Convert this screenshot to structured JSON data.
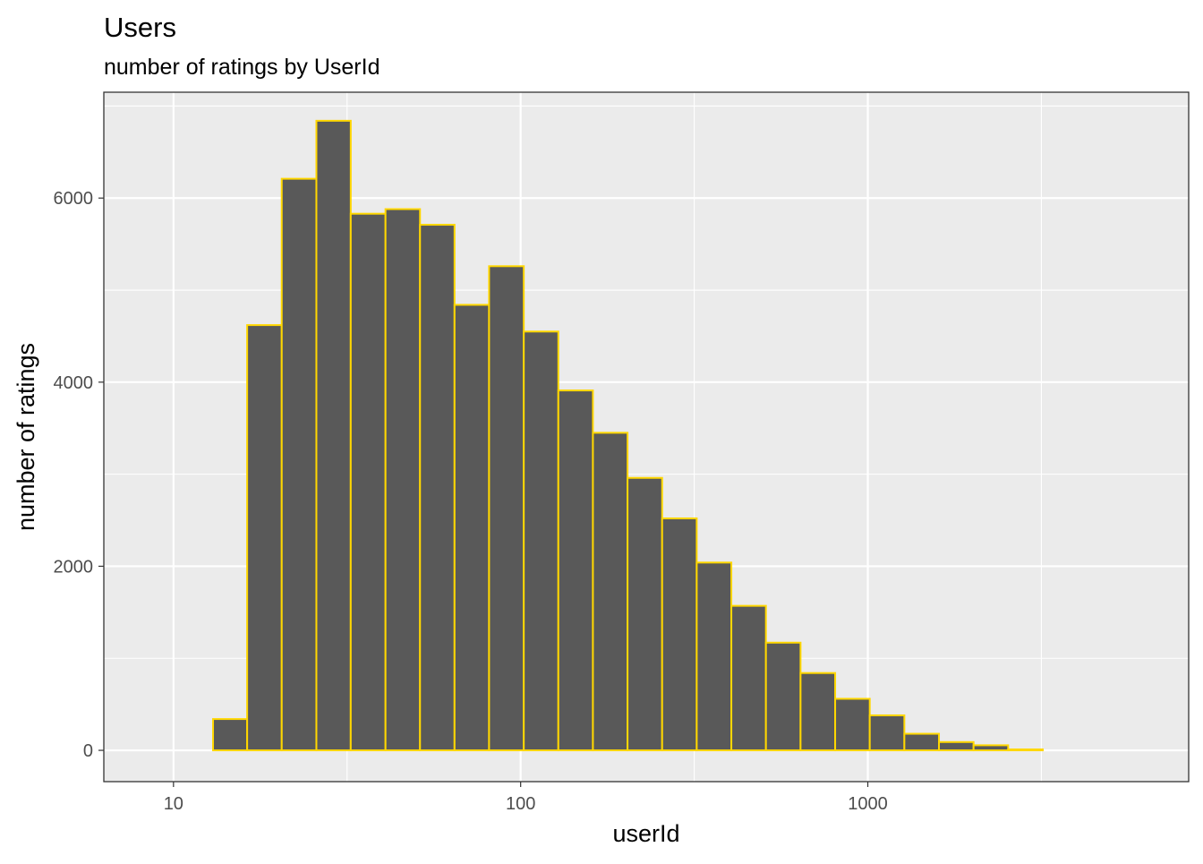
{
  "chart_data": {
    "type": "bar",
    "title": "Users",
    "subtitle": "number of ratings by UserId",
    "xlabel": "userId",
    "ylabel": "number of ratings",
    "x_scale": "log10",
    "xlim": [
      6.3,
      8400
    ],
    "ylim": [
      -340,
      7150
    ],
    "x_ticks": [
      {
        "value": 10,
        "label": "10"
      },
      {
        "value": 100,
        "label": "100"
      },
      {
        "value": 1000,
        "label": "1000"
      }
    ],
    "y_ticks": [
      {
        "value": 0,
        "label": "0"
      },
      {
        "value": 2000,
        "label": "2000"
      },
      {
        "value": 4000,
        "label": "4000"
      },
      {
        "value": 6000,
        "label": "6000"
      }
    ],
    "grid": true,
    "panel_border": true,
    "bins": [
      {
        "x0": 8.2,
        "x1": 10.3,
        "count": 0
      },
      {
        "x0": 10.3,
        "x1": 13.0,
        "count": 0
      },
      {
        "x0": 13.0,
        "x1": 16.3,
        "count": 340
      },
      {
        "x0": 16.3,
        "x1": 20.5,
        "count": 4620
      },
      {
        "x0": 20.5,
        "x1": 25.8,
        "count": 6210
      },
      {
        "x0": 25.8,
        "x1": 32.4,
        "count": 6840
      },
      {
        "x0": 32.4,
        "x1": 40.8,
        "count": 5830
      },
      {
        "x0": 40.8,
        "x1": 51.3,
        "count": 5880
      },
      {
        "x0": 51.3,
        "x1": 64.5,
        "count": 5710
      },
      {
        "x0": 64.5,
        "x1": 81.1,
        "count": 4840
      },
      {
        "x0": 81.1,
        "x1": 102.1,
        "count": 5260
      },
      {
        "x0": 102.1,
        "x1": 128.4,
        "count": 4550
      },
      {
        "x0": 128.4,
        "x1": 161.5,
        "count": 3910
      },
      {
        "x0": 161.5,
        "x1": 203.2,
        "count": 3450
      },
      {
        "x0": 203.2,
        "x1": 255.6,
        "count": 2960
      },
      {
        "x0": 255.6,
        "x1": 321.5,
        "count": 2520
      },
      {
        "x0": 321.5,
        "x1": 404.5,
        "count": 2040
      },
      {
        "x0": 404.5,
        "x1": 508.8,
        "count": 1570
      },
      {
        "x0": 508.8,
        "x1": 640.1,
        "count": 1170
      },
      {
        "x0": 640.1,
        "x1": 805.3,
        "count": 840
      },
      {
        "x0": 805.3,
        "x1": 1013.0,
        "count": 560
      },
      {
        "x0": 1013.0,
        "x1": 1274.3,
        "count": 380
      },
      {
        "x0": 1274.3,
        "x1": 1603.1,
        "count": 180
      },
      {
        "x0": 1603.1,
        "x1": 2016.7,
        "count": 90
      },
      {
        "x0": 2016.7,
        "x1": 2537.0,
        "count": 55
      },
      {
        "x0": 2537.0,
        "x1": 3191.6,
        "count": 10
      },
      {
        "x0": 3191.6,
        "x1": 4015.0,
        "count": 0
      },
      {
        "x0": 4015.0,
        "x1": 5051.0,
        "count": 0
      },
      {
        "x0": 5051.0,
        "x1": 6354.0,
        "count": 0
      }
    ],
    "colors": {
      "bar_fill": "#595959",
      "bar_outline": "#FFD700",
      "panel_background": "#EBEBEB",
      "grid_line": "#FFFFFF",
      "panel_border": "#333333",
      "tick_text": "#4D4D4D",
      "title_text": "#000000"
    }
  }
}
